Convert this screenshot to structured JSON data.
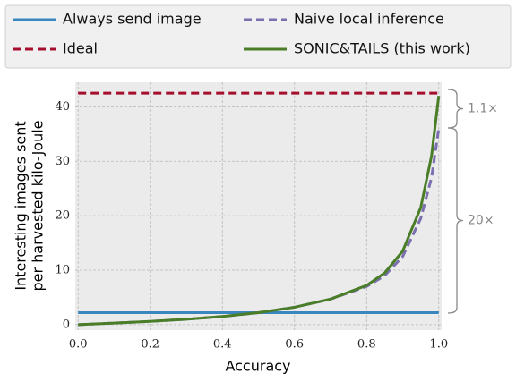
{
  "chart_data": {
    "type": "line",
    "x_label": "Accuracy",
    "y_label": [
      "Interesting images sent",
      "per harvested kilo-Joule"
    ],
    "x": [
      0,
      0.1,
      0.2,
      0.3,
      0.4,
      0.5,
      0.6,
      0.7,
      0.8,
      0.85,
      0.9,
      0.95,
      0.98,
      1.0
    ],
    "series": [
      {
        "name": "Always send image",
        "color": "#3a87c0",
        "dash": false,
        "values": [
          2.2,
          2.2,
          2.2,
          2.2,
          2.2,
          2.2,
          2.2,
          2.2,
          2.2,
          2.2,
          2.2,
          2.2,
          2.2,
          2.2
        ]
      },
      {
        "name": "Naive local inference",
        "color": "#7b6fb0",
        "dash": true,
        "values": [
          0,
          0.3,
          0.6,
          1.0,
          1.5,
          2.2,
          3.2,
          4.7,
          7.0,
          9.0,
          12.5,
          19.5,
          27,
          36
        ]
      },
      {
        "name": "Ideal",
        "color": "#a50f2d",
        "dash": true,
        "values": [
          42.5,
          42.5,
          42.5,
          42.5,
          42.5,
          42.5,
          42.5,
          42.5,
          42.5,
          42.5,
          42.5,
          42.5,
          42.5,
          42.5
        ]
      },
      {
        "name": "SONIC&TAILS (this work)",
        "color": "#4a7d28",
        "dash": false,
        "values": [
          0,
          0.3,
          0.6,
          1.0,
          1.5,
          2.2,
          3.2,
          4.7,
          7.2,
          9.5,
          13.5,
          21.5,
          31,
          42
        ]
      }
    ],
    "annotations": [
      "1.1×",
      "20×"
    ],
    "xlim": [
      -0.008,
      1.008
    ],
    "ylim": [
      -1,
      44.5
    ],
    "xticks": [
      {
        "value": 0,
        "label": "0.0"
      },
      {
        "value": 0.2,
        "label": "0.2"
      },
      {
        "value": 0.4,
        "label": "0.4"
      },
      {
        "value": 0.6,
        "label": "0.6"
      },
      {
        "value": 0.8,
        "label": "0.8"
      },
      {
        "value": 1,
        "label": "1.0"
      }
    ],
    "yticks": [
      0,
      10,
      20,
      30,
      40
    ],
    "grid": true
  }
}
